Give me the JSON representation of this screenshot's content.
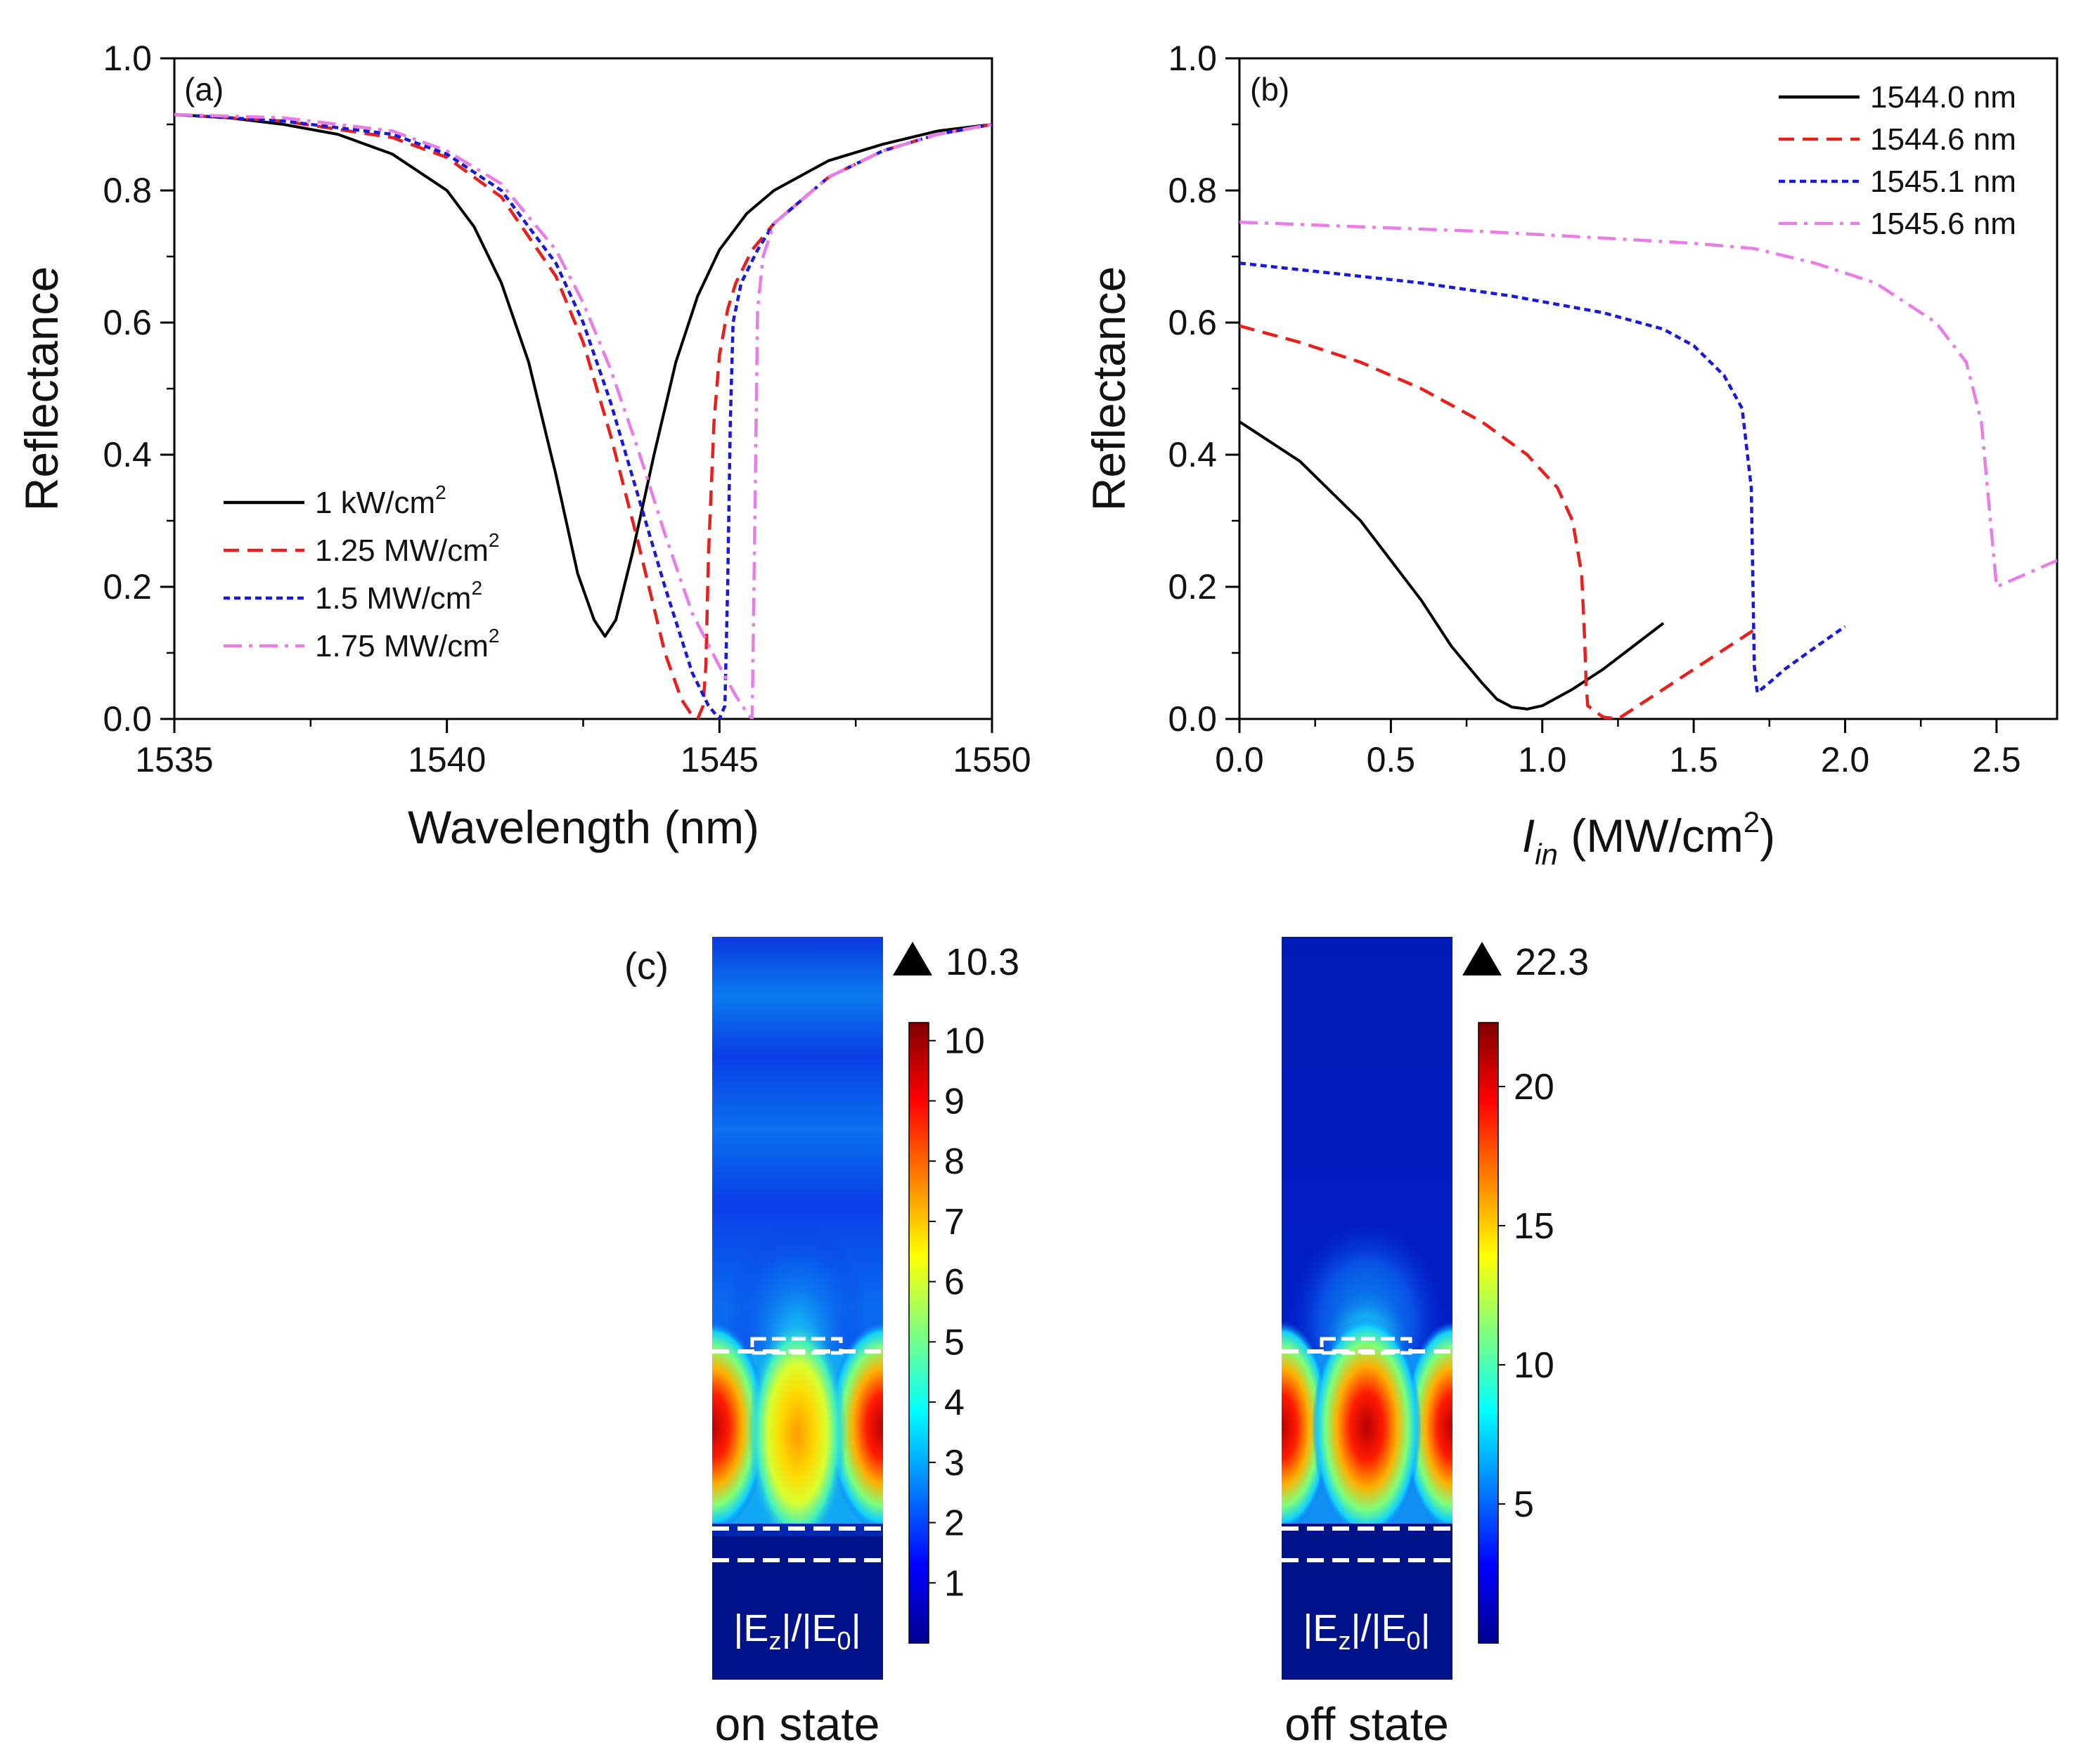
{
  "chart_data": [
    {
      "panel_label": "(a)",
      "type": "line",
      "xlabel": "Wavelength (nm)",
      "ylabel": "Reflectance",
      "xlim": [
        1535,
        1550
      ],
      "ylim": [
        0.0,
        1.0
      ],
      "xticks": [
        "1535",
        "1540",
        "1545",
        "1550"
      ],
      "yticks": [
        "0.0",
        "0.2",
        "0.4",
        "0.6",
        "0.8",
        "1.0"
      ],
      "legend_position": "lower-left",
      "series": [
        {
          "name": "1 kW/cm",
          "sup": "2",
          "color": "#000000",
          "dash": "solid",
          "x": [
            1535,
            1536,
            1537,
            1538,
            1539,
            1540,
            1540.5,
            1541,
            1541.5,
            1542,
            1542.4,
            1542.7,
            1542.9,
            1543.1,
            1543.4,
            1543.8,
            1544.2,
            1544.6,
            1545,
            1545.5,
            1546,
            1547,
            1548,
            1549,
            1550
          ],
          "y": [
            0.915,
            0.91,
            0.9,
            0.885,
            0.855,
            0.8,
            0.745,
            0.66,
            0.54,
            0.37,
            0.22,
            0.15,
            0.125,
            0.15,
            0.25,
            0.4,
            0.54,
            0.64,
            0.71,
            0.765,
            0.8,
            0.845,
            0.87,
            0.89,
            0.9
          ]
        },
        {
          "name": "1.25 MW/cm",
          "sup": "2",
          "color": "#e8201c",
          "dash": "dashed",
          "x": [
            1535,
            1537,
            1539,
            1540,
            1541,
            1542,
            1542.5,
            1543,
            1543.5,
            1544,
            1544.3,
            1544.5,
            1544.6,
            1544.7,
            1544.75,
            1544.8,
            1544.9,
            1545,
            1545.15,
            1545.3,
            1545.6,
            1546,
            1547,
            1548,
            1549,
            1550
          ],
          "y": [
            0.915,
            0.905,
            0.88,
            0.85,
            0.79,
            0.67,
            0.57,
            0.43,
            0.27,
            0.1,
            0.03,
            0.005,
            0.0,
            0.02,
            0.08,
            0.25,
            0.45,
            0.55,
            0.62,
            0.66,
            0.71,
            0.75,
            0.82,
            0.86,
            0.885,
            0.9
          ]
        },
        {
          "name": "1.5 MW/cm",
          "sup": "2",
          "color": "#1a1ad6",
          "dash": "dotted",
          "x": [
            1535,
            1537,
            1539,
            1540,
            1541,
            1542,
            1542.5,
            1543,
            1543.5,
            1544,
            1544.5,
            1544.8,
            1545,
            1545.1,
            1545.15,
            1545.2,
            1545.25,
            1545.4,
            1545.7,
            1546,
            1547,
            1548,
            1549,
            1550
          ],
          "y": [
            0.915,
            0.905,
            0.885,
            0.855,
            0.8,
            0.69,
            0.6,
            0.48,
            0.34,
            0.2,
            0.07,
            0.02,
            0.0,
            0.02,
            0.2,
            0.45,
            0.6,
            0.66,
            0.71,
            0.75,
            0.82,
            0.86,
            0.885,
            0.9
          ]
        },
        {
          "name": "1.75 MW/cm",
          "sup": "2",
          "color": "#e87de8",
          "dash": "dashdot",
          "x": [
            1535,
            1537,
            1539,
            1540,
            1541,
            1542,
            1542.5,
            1543,
            1543.5,
            1544,
            1544.5,
            1545,
            1545.3,
            1545.5,
            1545.6,
            1545.65,
            1545.7,
            1545.8,
            1546,
            1547,
            1548,
            1549,
            1550
          ],
          "y": [
            0.915,
            0.91,
            0.89,
            0.86,
            0.81,
            0.71,
            0.63,
            0.53,
            0.41,
            0.28,
            0.16,
            0.08,
            0.035,
            0.01,
            0.0,
            0.3,
            0.62,
            0.7,
            0.75,
            0.82,
            0.86,
            0.885,
            0.9
          ]
        }
      ]
    },
    {
      "panel_label": "(b)",
      "type": "line",
      "xlabel_main": "I",
      "xlabel_sub": "in",
      "xlabel_tail": " (MW/cm",
      "xlabel_sup": "2",
      "xlabel_close": ")",
      "ylabel": "Reflectance",
      "xlim": [
        0.0,
        2.7
      ],
      "ylim": [
        0.0,
        1.0
      ],
      "xticks": [
        "0.0",
        "0.5",
        "1.0",
        "1.5",
        "2.0",
        "2.5"
      ],
      "yticks": [
        "0.0",
        "0.2",
        "0.4",
        "0.6",
        "0.8",
        "1.0"
      ],
      "legend_position": "top-right",
      "series": [
        {
          "name": "1544.0 nm",
          "color": "#000000",
          "dash": "solid",
          "x": [
            0.0,
            0.2,
            0.4,
            0.6,
            0.7,
            0.8,
            0.85,
            0.9,
            0.95,
            1.0,
            1.1,
            1.2,
            1.3,
            1.4
          ],
          "y": [
            0.45,
            0.39,
            0.3,
            0.18,
            0.11,
            0.055,
            0.03,
            0.018,
            0.015,
            0.02,
            0.045,
            0.075,
            0.11,
            0.145
          ]
        },
        {
          "name": "1544.6 nm",
          "color": "#e8201c",
          "dash": "dashed",
          "x": [
            0.0,
            0.2,
            0.4,
            0.6,
            0.8,
            0.95,
            1.05,
            1.1,
            1.13,
            1.14,
            1.145,
            1.15,
            1.2,
            1.25,
            1.3,
            1.4,
            1.5,
            1.6,
            1.7
          ],
          "y": [
            0.595,
            0.57,
            0.54,
            0.5,
            0.45,
            0.4,
            0.35,
            0.3,
            0.22,
            0.12,
            0.05,
            0.02,
            0.003,
            0.0,
            0.015,
            0.045,
            0.075,
            0.105,
            0.135
          ]
        },
        {
          "name": "1545.1 nm",
          "color": "#1a1ad6",
          "dash": "dotted",
          "x": [
            0.0,
            0.3,
            0.6,
            0.9,
            1.2,
            1.4,
            1.5,
            1.6,
            1.66,
            1.69,
            1.7,
            1.71,
            1.75,
            1.8,
            1.9,
            2.0
          ],
          "y": [
            0.69,
            0.675,
            0.66,
            0.64,
            0.615,
            0.59,
            0.565,
            0.52,
            0.47,
            0.35,
            0.08,
            0.04,
            0.055,
            0.075,
            0.108,
            0.14
          ]
        },
        {
          "name": "1545.6 nm",
          "color": "#e87de8",
          "dash": "dashdot",
          "x": [
            0.0,
            0.4,
            0.8,
            1.2,
            1.5,
            1.7,
            1.9,
            2.1,
            2.3,
            2.4,
            2.45,
            2.48,
            2.5,
            2.55,
            2.6,
            2.7
          ],
          "y": [
            0.752,
            0.745,
            0.738,
            0.728,
            0.72,
            0.712,
            0.69,
            0.66,
            0.6,
            0.54,
            0.45,
            0.3,
            0.2,
            0.21,
            0.22,
            0.24
          ]
        }
      ]
    },
    {
      "panel_label": "(c)",
      "type": "heatmap",
      "maps": [
        {
          "caption": "on state",
          "field_label_base": "|E",
          "field_label_sub": "z",
          "field_label_mid": "|/|E",
          "field_label_sub2": "0",
          "field_label_end": "|",
          "max_label": "10.3",
          "colorbar_max": 10.3,
          "colorbar_ticks": [
            "1",
            "2",
            "3",
            "4",
            "5",
            "6",
            "7",
            "8",
            "9",
            "10"
          ]
        },
        {
          "caption": "off state",
          "field_label_base": "|E",
          "field_label_sub": "z",
          "field_label_mid": "|/|E",
          "field_label_sub2": "0",
          "field_label_end": "|",
          "max_label": "22.3",
          "colorbar_max": 22.3,
          "colorbar_ticks": [
            "5",
            "10",
            "15",
            "20"
          ]
        }
      ]
    }
  ]
}
